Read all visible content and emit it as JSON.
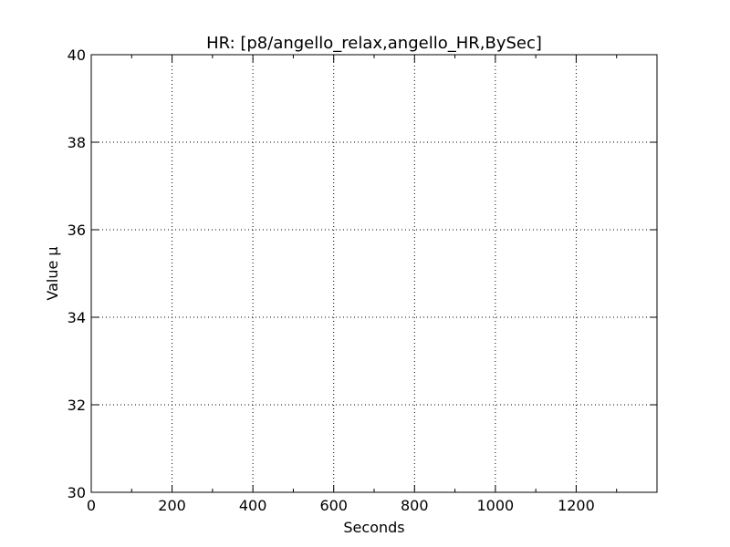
{
  "chart_data": {
    "type": "line",
    "title": "HR: [p8/angello_relax,angello_HR,BySec]",
    "xlabel": "Seconds",
    "ylabel": "Value µ",
    "xlim": [
      0,
      1400
    ],
    "ylim": [
      30,
      40
    ],
    "x_major_ticks": [
      0,
      200,
      400,
      600,
      800,
      1000,
      1200
    ],
    "x_minor_ticks": [
      100,
      300,
      500,
      700,
      900,
      1100,
      1300
    ],
    "y_major_ticks": [
      30,
      32,
      34,
      36,
      38,
      40
    ],
    "y_minor_ticks": [],
    "x_tick_labels": [
      "0",
      "200",
      "400",
      "600",
      "800",
      "1000",
      "1200"
    ],
    "y_tick_labels": [
      "30",
      "32",
      "34",
      "36",
      "38",
      "40"
    ],
    "grid": true,
    "series": []
  }
}
